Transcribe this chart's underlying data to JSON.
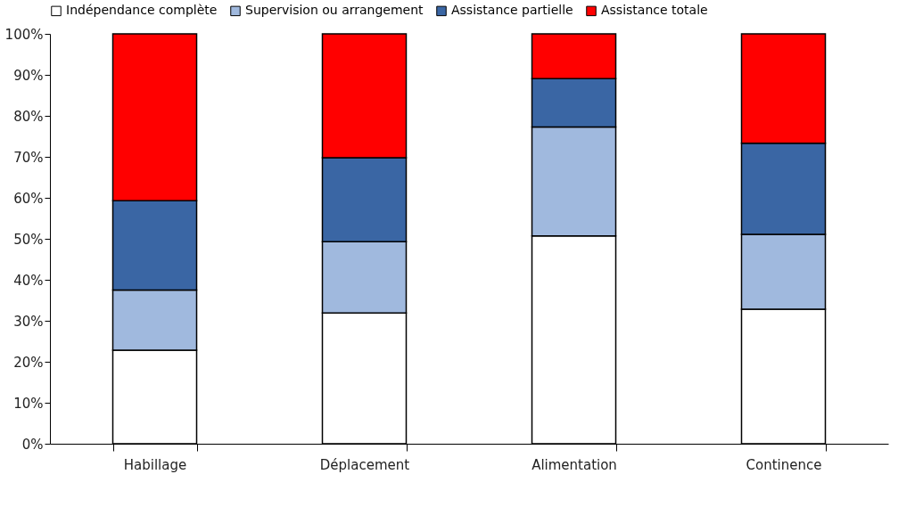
{
  "chart_data": {
    "type": "bar",
    "stacked": true,
    "legend": "top",
    "categories": [
      "Habillage",
      "Déplacement",
      "Alimentation",
      "Continence"
    ],
    "series": [
      {
        "name": "Indépendance complète",
        "color": "#ffffff",
        "values": [
          22.8,
          31.9,
          50.7,
          32.8
        ]
      },
      {
        "name": "Supervision ou arrangement",
        "color": "#a0b9de",
        "values": [
          14.7,
          17.4,
          26.6,
          18.3
        ]
      },
      {
        "name": "Assistance partielle",
        "color": "#3a66a4",
        "values": [
          21.8,
          20.5,
          11.8,
          22.2
        ]
      },
      {
        "name": "Assistance totale",
        "color": "#ff0000",
        "values": [
          40.7,
          30.2,
          10.9,
          26.7
        ]
      }
    ],
    "ylim": [
      0,
      100
    ],
    "yticks": [
      {
        "value": 0,
        "label": "0%"
      },
      {
        "value": 10,
        "label": "10%"
      },
      {
        "value": 20,
        "label": "20%"
      },
      {
        "value": 30,
        "label": "30%"
      },
      {
        "value": 40,
        "label": "40%"
      },
      {
        "value": 50,
        "label": "50%"
      },
      {
        "value": 60,
        "label": "60%"
      },
      {
        "value": 70,
        "label": "70%"
      },
      {
        "value": 80,
        "label": "80%"
      },
      {
        "value": 90,
        "label": "90%"
      },
      {
        "value": 100,
        "label": "100%"
      }
    ],
    "grid": false
  }
}
